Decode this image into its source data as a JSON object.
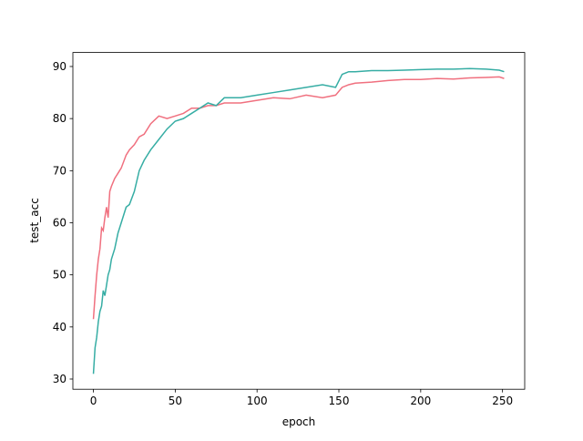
{
  "chart_data": {
    "type": "line",
    "x_label": "epoch",
    "y_label": "test_acc",
    "x": [
      0,
      1,
      2,
      3,
      4,
      5,
      6,
      7,
      8,
      9,
      10,
      11,
      13,
      15,
      17,
      20,
      22,
      25,
      28,
      31,
      35,
      40,
      45,
      50,
      55,
      60,
      65,
      70,
      75,
      80,
      90,
      100,
      110,
      120,
      130,
      140,
      148,
      152,
      156,
      160,
      170,
      180,
      190,
      200,
      210,
      220,
      230,
      240,
      248,
      251
    ],
    "series": [
      {
        "color": "#f0707f",
        "values": [
          41.5,
          46,
          50,
          53,
          55,
          59,
          58.5,
          61,
          63,
          61,
          66,
          67,
          68.5,
          69.5,
          70.5,
          73,
          74,
          75,
          76.5,
          77,
          79,
          80.5,
          80,
          80.5,
          81,
          82,
          82,
          82.5,
          82.5,
          83,
          83,
          83.5,
          84,
          83.8,
          84.5,
          84,
          84.5,
          86,
          86.5,
          86.8,
          87,
          87.3,
          87.5,
          87.5,
          87.7,
          87.6,
          87.8,
          87.9,
          88,
          87.7
        ]
      },
      {
        "color": "#36ada4",
        "values": [
          31,
          36,
          38,
          41,
          43,
          44,
          47,
          46,
          48,
          50,
          51,
          53,
          55,
          58,
          60,
          63,
          63.5,
          66,
          70,
          72,
          74,
          76,
          78,
          79.5,
          80,
          81,
          82,
          83,
          82.5,
          84,
          84,
          84.5,
          85,
          85.5,
          86,
          86.5,
          86,
          88.5,
          89,
          89,
          89.2,
          89.2,
          89.3,
          89.4,
          89.5,
          89.5,
          89.6,
          89.5,
          89.3,
          89
        ]
      }
    ],
    "xlim": [
      -12.55,
      263.55
    ],
    "ylim": [
      28.04,
      92.69
    ],
    "xticks": [
      0,
      50,
      100,
      150,
      200,
      250
    ],
    "yticks": [
      30,
      40,
      50,
      60,
      70,
      80,
      90
    ],
    "grid": false
  }
}
